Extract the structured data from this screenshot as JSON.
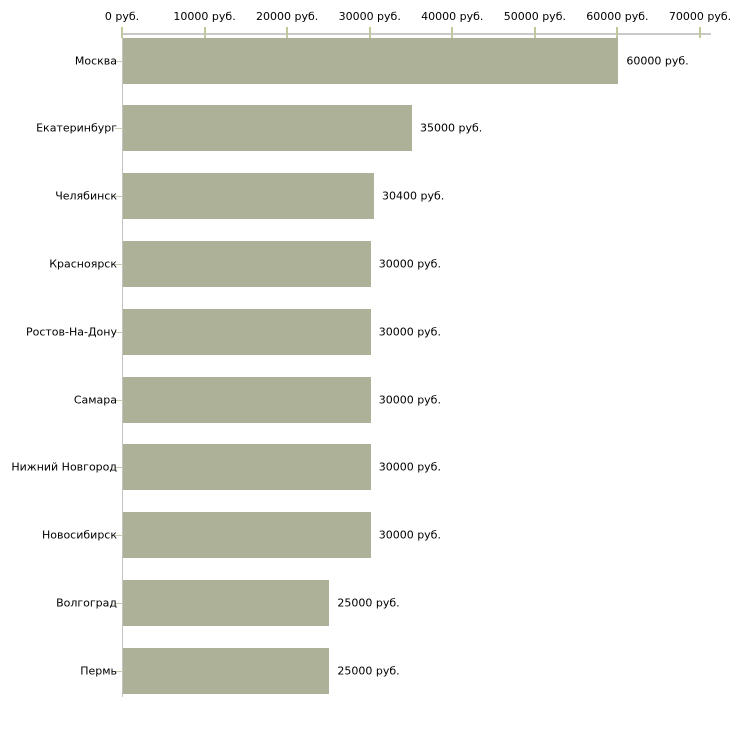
{
  "chart_data": {
    "type": "bar",
    "orientation": "horizontal",
    "title": "",
    "xlabel": "",
    "ylabel": "",
    "xlim": [
      0,
      70000
    ],
    "grid": false,
    "legend": false,
    "unit": "руб.",
    "x_tick_values": [
      0,
      10000,
      20000,
      30000,
      40000,
      50000,
      60000,
      70000
    ],
    "x_tick_labels": [
      "0 руб.",
      "10000 руб.",
      "20000 руб.",
      "30000 руб.",
      "40000 руб.",
      "50000 руб.",
      "60000 руб.",
      "70000 руб."
    ],
    "categories": [
      "Москва",
      "Екатеринбург",
      "Челябинск",
      "Красноярск",
      "Ростов-На-Дону",
      "Самара",
      "Нижний Новгород",
      "Новосибирск",
      "Волгоград",
      "Пермь"
    ],
    "values": [
      60000,
      35000,
      30400,
      30000,
      30000,
      30000,
      30000,
      30000,
      25000,
      25000
    ],
    "value_labels": [
      "60000 руб.",
      "35000 руб.",
      "30400 руб.",
      "30000 руб.",
      "30000 руб.",
      "30000 руб.",
      "30000 руб.",
      "30000 руб.",
      "25000 руб.",
      "25000 руб."
    ],
    "colors": {
      "bar_fill": "#acb198",
      "axis_line": "#c9c9c9",
      "tick_mark": "#c2c79c",
      "text": "#000000",
      "background": "#ffffff"
    }
  }
}
